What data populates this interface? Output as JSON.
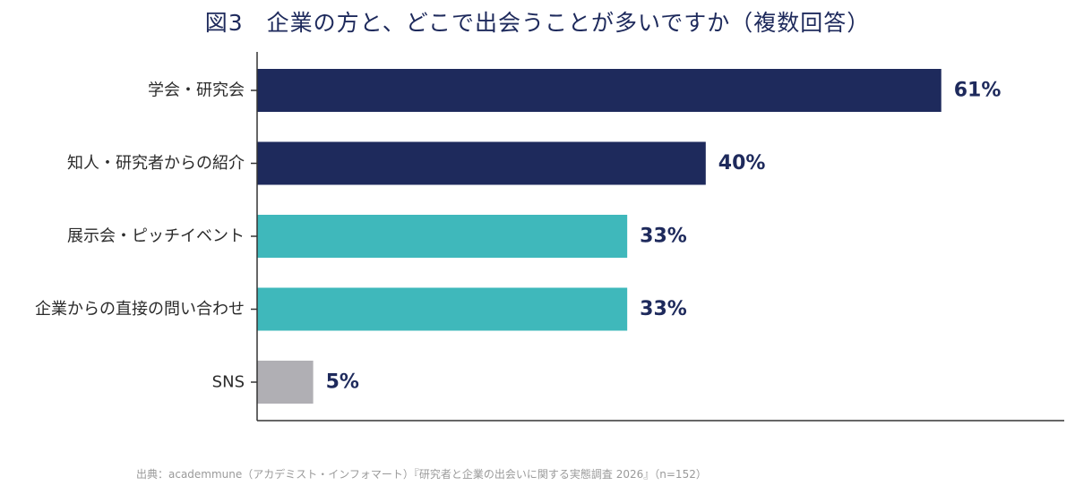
{
  "chart_data": {
    "type": "bar",
    "orientation": "horizontal",
    "title": "図3　企業の方と、どこで出会うことが多いですか（複数回答）",
    "categories": [
      "学会・研究会",
      "知人・研究者からの紹介",
      "展示会・ピッチイベント",
      "企業からの直接の問い合わせ",
      "SNS"
    ],
    "values": [
      61,
      40,
      33,
      33,
      5
    ],
    "value_labels": [
      "61%",
      "40%",
      "33%",
      "33%",
      "5%"
    ],
    "unit": "%",
    "xlim": [
      0,
      70
    ],
    "grid": false,
    "colors": [
      "#1e2a5c",
      "#1e2a5c",
      "#3fb8bb",
      "#3fb8bb",
      "#b0afb4"
    ]
  },
  "source_note": "出典：academmune（アカデミスト・インフォマート）『研究者と企業の出会いに関する実態調査 2026』（n=152）"
}
